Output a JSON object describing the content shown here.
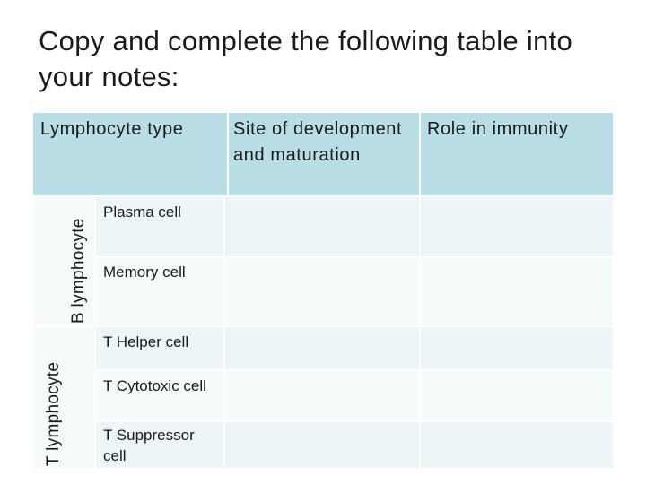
{
  "title": "Copy and complete the following table into your notes:",
  "table": {
    "headers": {
      "type": "Lymphocyte type",
      "site": "Site of development and maturation",
      "role": "Role in immunity"
    },
    "groups": [
      {
        "label": "B lymphocyte",
        "rows": [
          {
            "name": "Plasma cell",
            "site": "",
            "role": ""
          },
          {
            "name": "Memory cell",
            "site": "",
            "role": ""
          }
        ]
      },
      {
        "label": "T lymphocyte",
        "rows": [
          {
            "name": "T Helper cell",
            "site": "",
            "role": ""
          },
          {
            "name": "T Cytotoxic cell",
            "site": "",
            "role": ""
          },
          {
            "name": "T Suppressor cell",
            "site": "",
            "role": ""
          }
        ]
      }
    ]
  }
}
